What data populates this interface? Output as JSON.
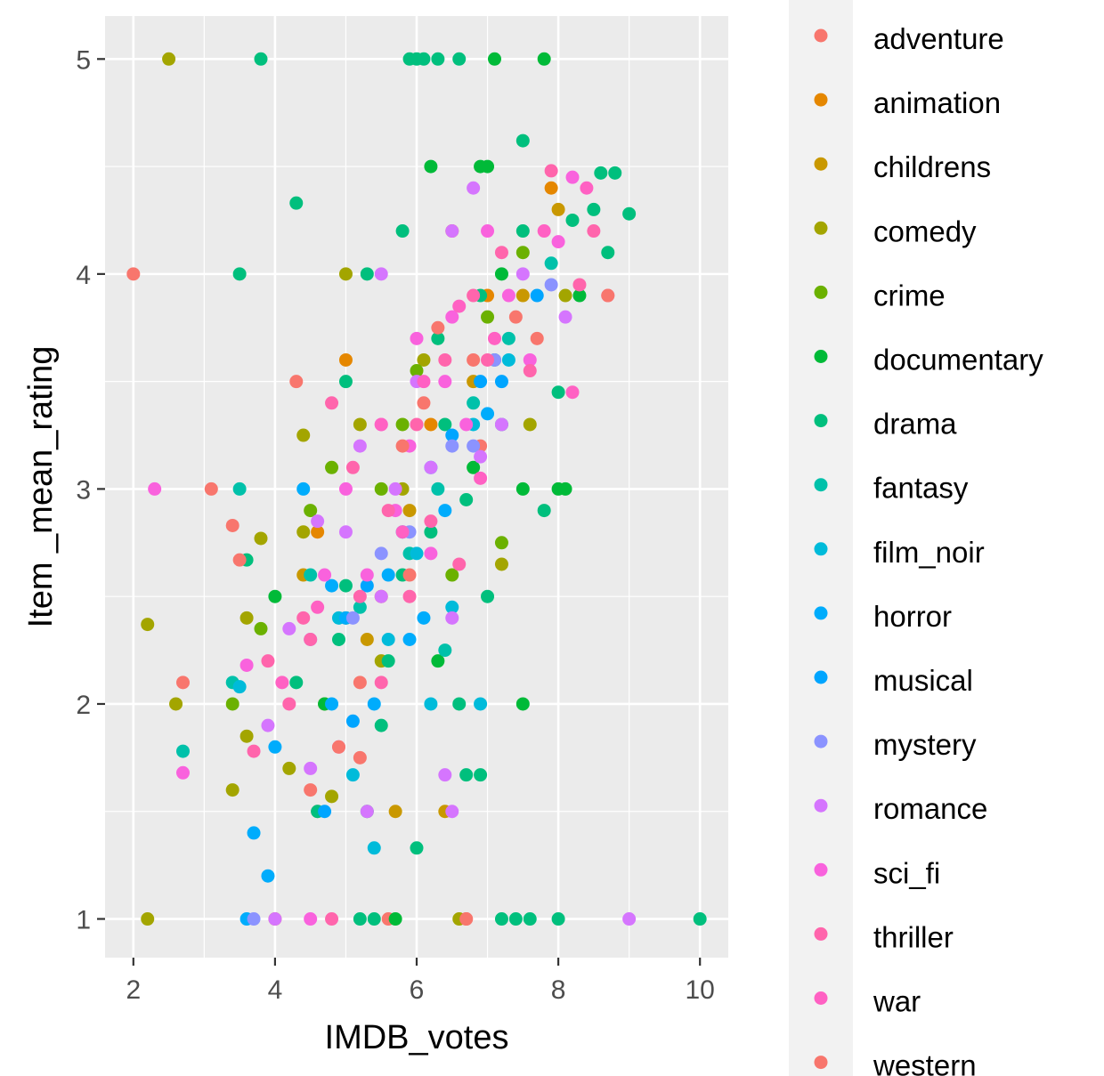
{
  "chart_data": {
    "type": "scatter",
    "xlabel": "IMDB_votes",
    "ylabel": "Item _mean_rating",
    "xlim": [
      1.6,
      10.4
    ],
    "ylim": [
      0.82,
      5.2
    ],
    "x_ticks": [
      2,
      4,
      6,
      8,
      10
    ],
    "y_ticks": [
      1,
      2,
      3,
      4,
      5
    ],
    "x_tick_labels": [
      "2",
      "4",
      "6",
      "8",
      "10"
    ],
    "y_tick_labels": [
      "1",
      "2",
      "3",
      "4",
      "5"
    ],
    "grid": true,
    "legend_position": "right",
    "series": [
      {
        "name": "adventure",
        "color": "#F8766D",
        "points": [
          [
            2.0,
            4.0
          ],
          [
            4.6,
            1.5
          ],
          [
            5.6,
            1.0
          ],
          [
            6.7,
            1.0
          ],
          [
            6.9,
            3.2
          ],
          [
            5.2,
            2.1
          ],
          [
            6.1,
            3.4
          ],
          [
            7.4,
            3.8
          ]
        ]
      },
      {
        "name": "animation",
        "color": "#E58700",
        "points": [
          [
            4.0,
            1.0
          ],
          [
            5.0,
            3.6
          ],
          [
            4.6,
            2.8
          ],
          [
            6.5,
            4.2
          ],
          [
            5.5,
            2.5
          ],
          [
            7.0,
            3.9
          ],
          [
            7.9,
            4.4
          ],
          [
            6.2,
            3.3
          ]
        ]
      },
      {
        "name": "childrens",
        "color": "#C99800",
        "points": [
          [
            4.4,
            2.6
          ],
          [
            4.7,
            2.0
          ],
          [
            5.3,
            2.3
          ],
          [
            5.9,
            2.9
          ],
          [
            6.8,
            3.5
          ],
          [
            7.5,
            3.9
          ],
          [
            8.0,
            4.3
          ],
          [
            5.7,
            1.5
          ],
          [
            6.4,
            1.5
          ]
        ]
      },
      {
        "name": "comedy",
        "color": "#A3A500",
        "points": [
          [
            2.5,
            5.0
          ],
          [
            2.2,
            1.0
          ],
          [
            2.2,
            2.37
          ],
          [
            2.6,
            2.0
          ],
          [
            3.4,
            1.6
          ],
          [
            3.6,
            2.4
          ],
          [
            3.8,
            2.77
          ],
          [
            4.2,
            1.7
          ],
          [
            4.4,
            2.8
          ],
          [
            4.8,
            1.57
          ],
          [
            5.0,
            4.0
          ],
          [
            5.2,
            3.3
          ],
          [
            5.5,
            2.2
          ],
          [
            5.8,
            3.0
          ],
          [
            6.1,
            3.6
          ],
          [
            6.6,
            1.0
          ],
          [
            7.2,
            2.65
          ],
          [
            7.6,
            3.3
          ],
          [
            8.1,
            3.9
          ],
          [
            4.4,
            3.25
          ],
          [
            3.6,
            1.85
          ]
        ]
      },
      {
        "name": "crime",
        "color": "#6BB100",
        "points": [
          [
            3.4,
            2.0
          ],
          [
            3.8,
            2.35
          ],
          [
            4.5,
            2.9
          ],
          [
            5.0,
            2.4
          ],
          [
            5.5,
            3.0
          ],
          [
            6.0,
            3.55
          ],
          [
            6.5,
            2.6
          ],
          [
            7.0,
            3.8
          ],
          [
            7.5,
            4.1
          ],
          [
            7.2,
            2.75
          ],
          [
            4.8,
            3.1
          ],
          [
            5.8,
            3.3
          ]
        ]
      },
      {
        "name": "documentary",
        "color": "#00BA38",
        "points": [
          [
            6.2,
            4.5
          ],
          [
            7.0,
            4.5
          ],
          [
            7.1,
            5.0
          ],
          [
            7.8,
            5.0
          ],
          [
            6.9,
            4.5
          ],
          [
            4.0,
            2.5
          ],
          [
            5.7,
            1.0
          ],
          [
            7.5,
            3.0
          ],
          [
            8.0,
            3.0
          ],
          [
            8.1,
            3.0
          ],
          [
            6.3,
            2.2
          ],
          [
            4.7,
            2.0
          ],
          [
            5.3,
            1.5
          ],
          [
            7.5,
            2.0
          ],
          [
            7.2,
            4.0
          ],
          [
            8.3,
            3.9
          ],
          [
            6.8,
            3.1
          ]
        ]
      },
      {
        "name": "drama",
        "color": "#00BF7D",
        "points": [
          [
            3.8,
            5.0
          ],
          [
            5.9,
            5.0
          ],
          [
            6.0,
            5.0
          ],
          [
            6.1,
            5.0
          ],
          [
            6.3,
            5.0
          ],
          [
            6.6,
            5.0
          ],
          [
            7.5,
            4.62
          ],
          [
            8.6,
            4.47
          ],
          [
            8.8,
            4.47
          ],
          [
            9.0,
            4.28
          ],
          [
            4.3,
            4.33
          ],
          [
            3.5,
            4.0
          ],
          [
            5.3,
            4.0
          ],
          [
            5.8,
            4.2
          ],
          [
            6.0,
            1.33
          ],
          [
            6.9,
            1.67
          ],
          [
            6.7,
            1.67
          ],
          [
            5.2,
            1.0
          ],
          [
            5.4,
            1.0
          ],
          [
            7.4,
            1.0
          ],
          [
            7.6,
            1.0
          ],
          [
            8.0,
            1.0
          ],
          [
            10.0,
            1.0
          ],
          [
            7.2,
            1.0
          ],
          [
            6.6,
            2.0
          ],
          [
            7.0,
            2.5
          ],
          [
            6.2,
            2.8
          ],
          [
            5.0,
            2.55
          ],
          [
            5.6,
            2.2
          ],
          [
            6.4,
            3.3
          ],
          [
            7.8,
            2.9
          ],
          [
            8.0,
            3.45
          ],
          [
            7.2,
            3.3
          ],
          [
            6.9,
            3.9
          ],
          [
            7.5,
            4.2
          ],
          [
            8.2,
            4.25
          ],
          [
            8.5,
            4.3
          ],
          [
            3.6,
            2.67
          ],
          [
            4.3,
            2.1
          ],
          [
            4.6,
            1.5
          ],
          [
            5.0,
            3.5
          ],
          [
            6.7,
            2.95
          ],
          [
            5.8,
            2.6
          ],
          [
            4.9,
            2.3
          ],
          [
            7.1,
            3.6
          ],
          [
            8.7,
            4.1
          ],
          [
            6.3,
            3.7
          ],
          [
            5.5,
            1.9
          ]
        ]
      },
      {
        "name": "fantasy",
        "color": "#00C1AA",
        "points": [
          [
            3.4,
            2.1
          ],
          [
            3.5,
            3.0
          ],
          [
            2.7,
            1.78
          ],
          [
            4.5,
            2.6
          ],
          [
            5.2,
            2.45
          ],
          [
            6.3,
            3.0
          ],
          [
            6.8,
            3.4
          ],
          [
            7.3,
            3.7
          ],
          [
            7.9,
            4.05
          ],
          [
            5.9,
            2.7
          ],
          [
            6.4,
            2.25
          ]
        ]
      },
      {
        "name": "film_noir",
        "color": "#00BBDA",
        "points": [
          [
            3.5,
            2.08
          ],
          [
            5.1,
            1.67
          ],
          [
            6.9,
            2.0
          ],
          [
            6.2,
            2.0
          ],
          [
            5.6,
            2.3
          ],
          [
            6.0,
            2.7
          ],
          [
            6.8,
            3.3
          ],
          [
            7.3,
            3.6
          ],
          [
            4.9,
            2.4
          ],
          [
            5.4,
            1.33
          ],
          [
            6.5,
            2.45
          ]
        ]
      },
      {
        "name": "horror",
        "color": "#00ACFC",
        "points": [
          [
            3.9,
            1.2
          ],
          [
            3.7,
            1.4
          ],
          [
            3.6,
            1.0
          ],
          [
            4.0,
            1.8
          ],
          [
            4.4,
            3.0
          ],
          [
            4.8,
            2.0
          ],
          [
            5.0,
            2.4
          ],
          [
            5.4,
            2.0
          ],
          [
            5.9,
            2.3
          ],
          [
            6.4,
            2.9
          ],
          [
            7.0,
            3.35
          ],
          [
            5.6,
            2.6
          ],
          [
            4.8,
            2.55
          ],
          [
            6.1,
            2.4
          ]
        ]
      },
      {
        "name": "musical",
        "color": "#00A5FF",
        "points": [
          [
            5.1,
            1.92
          ],
          [
            4.7,
            1.5
          ],
          [
            5.3,
            2.55
          ],
          [
            6.2,
            3.1
          ],
          [
            6.9,
            3.5
          ],
          [
            7.7,
            3.9
          ],
          [
            5.8,
            2.8
          ],
          [
            6.5,
            3.25
          ],
          [
            7.2,
            3.5
          ]
        ]
      },
      {
        "name": "mystery",
        "color": "#8B93FF",
        "points": [
          [
            3.7,
            1.0
          ],
          [
            5.1,
            2.4
          ],
          [
            5.9,
            2.8
          ],
          [
            6.5,
            3.2
          ],
          [
            7.1,
            3.6
          ],
          [
            7.9,
            3.95
          ],
          [
            5.5,
            2.7
          ],
          [
            6.8,
            3.2
          ],
          [
            4.5,
            2.3
          ]
        ]
      },
      {
        "name": "romance",
        "color": "#D575FE",
        "points": [
          [
            3.9,
            1.9
          ],
          [
            4.0,
            1.0
          ],
          [
            4.5,
            1.7
          ],
          [
            5.3,
            1.5
          ],
          [
            5.5,
            4.0
          ],
          [
            6.4,
            1.67
          ],
          [
            6.5,
            1.5
          ],
          [
            6.5,
            2.4
          ],
          [
            6.8,
            4.4
          ],
          [
            6.5,
            4.2
          ],
          [
            6.0,
            3.5
          ],
          [
            5.7,
            3.0
          ],
          [
            5.0,
            2.8
          ],
          [
            7.5,
            4.0
          ],
          [
            8.1,
            3.8
          ],
          [
            6.9,
            3.15
          ],
          [
            9.0,
            1.0
          ],
          [
            5.5,
            2.5
          ],
          [
            5.2,
            3.2
          ],
          [
            4.6,
            2.85
          ],
          [
            7.2,
            3.3
          ],
          [
            6.2,
            3.1
          ],
          [
            4.2,
            2.35
          ]
        ]
      },
      {
        "name": "sci_fi",
        "color": "#F962DD",
        "points": [
          [
            2.3,
            3.0
          ],
          [
            2.7,
            1.68
          ],
          [
            3.6,
            2.18
          ],
          [
            4.5,
            1.0
          ],
          [
            5.0,
            3.0
          ],
          [
            5.5,
            3.3
          ],
          [
            6.0,
            3.7
          ],
          [
            6.5,
            3.8
          ],
          [
            7.0,
            4.2
          ],
          [
            8.2,
            4.45
          ],
          [
            6.2,
            2.7
          ],
          [
            5.3,
            2.6
          ],
          [
            5.9,
            3.2
          ],
          [
            6.7,
            3.3
          ],
          [
            7.3,
            3.9
          ],
          [
            8.0,
            4.15
          ],
          [
            4.7,
            2.6
          ],
          [
            6.4,
            3.5
          ],
          [
            5.7,
            2.9
          ],
          [
            7.6,
            3.6
          ]
        ]
      },
      {
        "name": "thriller",
        "color": "#FF65AC",
        "points": [
          [
            3.7,
            1.78
          ],
          [
            4.5,
            2.3
          ],
          [
            4.8,
            3.4
          ],
          [
            5.2,
            2.5
          ],
          [
            5.6,
            2.9
          ],
          [
            6.0,
            3.3
          ],
          [
            6.4,
            3.6
          ],
          [
            6.8,
            3.9
          ],
          [
            7.2,
            4.1
          ],
          [
            7.9,
            4.48
          ],
          [
            8.5,
            4.2
          ],
          [
            8.7,
            3.9
          ],
          [
            4.4,
            2.4
          ],
          [
            5.9,
            2.5
          ],
          [
            6.6,
            2.65
          ],
          [
            7.0,
            3.6
          ],
          [
            5.1,
            3.1
          ],
          [
            6.2,
            2.85
          ],
          [
            7.6,
            3.55
          ],
          [
            8.3,
            3.95
          ],
          [
            5.5,
            2.1
          ],
          [
            4.2,
            2.0
          ],
          [
            4.8,
            1.0
          ],
          [
            3.9,
            2.2
          ]
        ]
      },
      {
        "name": "war",
        "color": "#FF61C3",
        "points": [
          [
            4.1,
            2.1
          ],
          [
            4.9,
            1.8
          ],
          [
            5.5,
            3.3
          ],
          [
            6.1,
            3.5
          ],
          [
            6.6,
            3.85
          ],
          [
            7.1,
            3.7
          ],
          [
            7.8,
            4.2
          ],
          [
            8.4,
            4.4
          ],
          [
            8.2,
            3.45
          ],
          [
            5.8,
            2.8
          ],
          [
            6.9,
            3.05
          ],
          [
            4.6,
            2.45
          ]
        ]
      },
      {
        "name": "western",
        "color": "#F8766D",
        "points": [
          [
            3.4,
            2.83
          ],
          [
            3.5,
            2.67
          ],
          [
            2.7,
            2.1
          ],
          [
            3.1,
            3.0
          ],
          [
            4.3,
            3.5
          ],
          [
            4.5,
            1.6
          ],
          [
            4.9,
            1.8
          ],
          [
            5.2,
            1.75
          ],
          [
            5.8,
            3.2
          ],
          [
            6.3,
            3.75
          ],
          [
            6.8,
            3.6
          ],
          [
            7.7,
            3.7
          ],
          [
            8.7,
            3.9
          ],
          [
            6.7,
            1.0
          ],
          [
            5.9,
            2.6
          ]
        ]
      }
    ]
  }
}
